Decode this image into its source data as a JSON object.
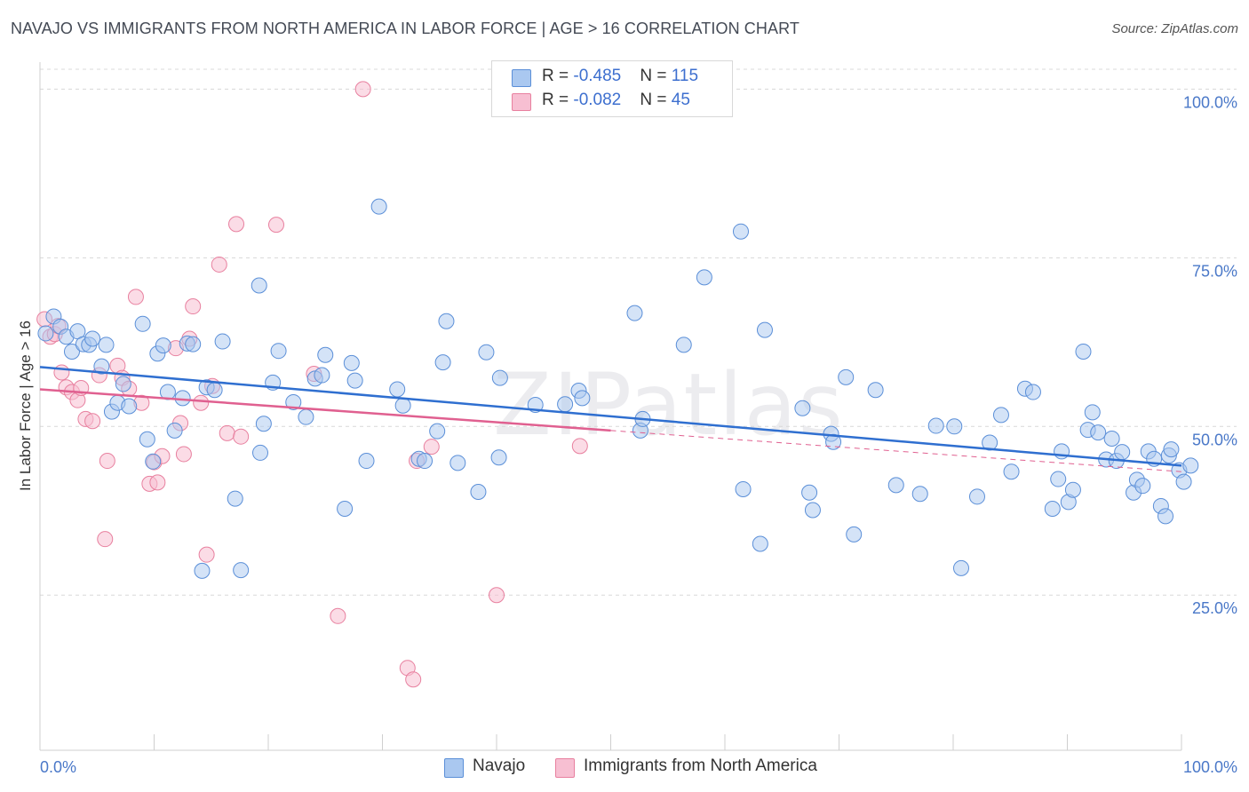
{
  "title": "NAVAJO VS IMMIGRANTS FROM NORTH AMERICA IN LABOR FORCE | AGE > 16 CORRELATION CHART",
  "source": "Source: ZipAtlas.com",
  "watermark": "ZIPatlas",
  "legend": {
    "navajo": {
      "r_label": "R = ",
      "r_value": "-0.485",
      "n_label": "N = ",
      "n_value": "115"
    },
    "immigrants": {
      "r_label": "R = ",
      "r_value": "-0.082",
      "n_label": "N = ",
      "n_value": "45"
    }
  },
  "colors": {
    "navajo_fill": "#aac8f0",
    "navajo_stroke": "#5b8fd8",
    "navajo_line": "#2f6fd0",
    "immigrants_fill": "#f7bfd2",
    "immigrants_stroke": "#e8809f",
    "immigrants_line": "#e06090",
    "grid": "#d8d8d8",
    "axis_text": "#4a78c8"
  },
  "chart_data": {
    "type": "scatter",
    "title": "NAVAJO VS IMMIGRANTS FROM NORTH AMERICA IN LABOR FORCE | AGE > 16 CORRELATION CHART",
    "xlabel": "",
    "ylabel": "In Labor Force | Age > 16",
    "xlim": [
      0,
      100
    ],
    "ylim": [
      2,
      104
    ],
    "x_tick_labels": [
      "0.0%",
      "100.0%"
    ],
    "y_ticks": [
      25,
      50,
      75,
      100
    ],
    "y_tick_labels": [
      "25.0%",
      "50.0%",
      "75.0%",
      "100.0%"
    ],
    "grid": "horizontal dashed",
    "legend_position": "top-center and bottom",
    "series": [
      {
        "name": "Navajo",
        "trend": {
          "x": [
            0,
            100
          ],
          "y": [
            58.8,
            44.2
          ]
        },
        "points": [
          [
            0.5,
            63.8
          ],
          [
            1.2,
            66.3
          ],
          [
            1.8,
            64.8
          ],
          [
            2.3,
            63.3
          ],
          [
            2.8,
            61.1
          ],
          [
            3.3,
            64.1
          ],
          [
            3.8,
            62.2
          ],
          [
            4.3,
            62.1
          ],
          [
            4.6,
            63.0
          ],
          [
            5.4,
            58.9
          ],
          [
            5.8,
            62.1
          ],
          [
            6.3,
            52.2
          ],
          [
            6.8,
            53.5
          ],
          [
            7.3,
            56.3
          ],
          [
            7.8,
            53.0
          ],
          [
            9.0,
            65.2
          ],
          [
            9.4,
            48.1
          ],
          [
            9.9,
            44.8
          ],
          [
            10.3,
            60.8
          ],
          [
            10.8,
            62.0
          ],
          [
            11.2,
            55.1
          ],
          [
            11.8,
            49.4
          ],
          [
            12.5,
            54.2
          ],
          [
            12.9,
            62.3
          ],
          [
            13.4,
            62.2
          ],
          [
            14.2,
            28.6
          ],
          [
            14.6,
            55.8
          ],
          [
            15.3,
            55.4
          ],
          [
            16.0,
            62.6
          ],
          [
            17.1,
            39.3
          ],
          [
            17.6,
            28.7
          ],
          [
            19.2,
            70.9
          ],
          [
            19.3,
            46.1
          ],
          [
            19.6,
            50.4
          ],
          [
            20.4,
            56.5
          ],
          [
            20.9,
            61.2
          ],
          [
            22.2,
            53.6
          ],
          [
            23.3,
            51.4
          ],
          [
            24.1,
            57.1
          ],
          [
            24.7,
            57.6
          ],
          [
            25.0,
            60.6
          ],
          [
            26.7,
            37.8
          ],
          [
            27.3,
            59.4
          ],
          [
            27.6,
            56.8
          ],
          [
            28.6,
            44.9
          ],
          [
            29.7,
            82.6
          ],
          [
            31.3,
            55.5
          ],
          [
            31.8,
            53.1
          ],
          [
            33.2,
            45.2
          ],
          [
            33.7,
            44.9
          ],
          [
            34.8,
            49.3
          ],
          [
            35.3,
            59.5
          ],
          [
            35.6,
            65.6
          ],
          [
            36.6,
            44.6
          ],
          [
            38.4,
            40.3
          ],
          [
            39.1,
            61.0
          ],
          [
            40.2,
            45.4
          ],
          [
            40.3,
            57.2
          ],
          [
            43.4,
            53.2
          ],
          [
            46.0,
            53.3
          ],
          [
            47.2,
            55.3
          ],
          [
            47.5,
            54.2
          ],
          [
            52.1,
            66.8
          ],
          [
            52.6,
            49.4
          ],
          [
            52.8,
            51.1
          ],
          [
            56.4,
            62.1
          ],
          [
            58.2,
            72.1
          ],
          [
            61.4,
            78.9
          ],
          [
            61.6,
            40.7
          ],
          [
            63.1,
            32.6
          ],
          [
            63.5,
            64.3
          ],
          [
            66.8,
            52.7
          ],
          [
            67.4,
            40.2
          ],
          [
            67.7,
            37.6
          ],
          [
            69.3,
            48.9
          ],
          [
            69.5,
            47.7
          ],
          [
            70.6,
            57.3
          ],
          [
            71.3,
            34.0
          ],
          [
            73.2,
            55.4
          ],
          [
            75.0,
            41.3
          ],
          [
            77.1,
            40.0
          ],
          [
            78.5,
            50.1
          ],
          [
            80.1,
            50.0
          ],
          [
            80.7,
            29.0
          ],
          [
            82.1,
            39.6
          ],
          [
            83.2,
            47.6
          ],
          [
            84.2,
            51.7
          ],
          [
            85.1,
            43.3
          ],
          [
            86.3,
            55.6
          ],
          [
            87.0,
            55.1
          ],
          [
            88.7,
            37.8
          ],
          [
            89.2,
            42.2
          ],
          [
            89.5,
            46.3
          ],
          [
            90.1,
            38.8
          ],
          [
            90.5,
            40.6
          ],
          [
            91.4,
            61.1
          ],
          [
            91.8,
            49.5
          ],
          [
            92.2,
            52.1
          ],
          [
            92.7,
            49.1
          ],
          [
            93.4,
            45.1
          ],
          [
            93.9,
            48.2
          ],
          [
            94.3,
            44.9
          ],
          [
            94.8,
            46.2
          ],
          [
            95.8,
            40.2
          ],
          [
            96.1,
            42.1
          ],
          [
            96.6,
            41.2
          ],
          [
            97.1,
            46.3
          ],
          [
            97.6,
            45.2
          ],
          [
            98.2,
            38.2
          ],
          [
            98.6,
            36.7
          ],
          [
            98.9,
            45.7
          ],
          [
            99.1,
            46.6
          ],
          [
            99.8,
            43.5
          ],
          [
            100.2,
            41.8
          ],
          [
            100.8,
            44.2
          ]
        ]
      },
      {
        "name": "Immigrants from North America",
        "trend": {
          "x": [
            0,
            50
          ],
          "y": [
            55.5,
            49.4
          ]
        },
        "trend_dashed": {
          "x": [
            50,
            100
          ],
          "y": [
            49.4,
            43.3
          ]
        },
        "points": [
          [
            0.4,
            65.9
          ],
          [
            0.9,
            63.3
          ],
          [
            1.3,
            63.7
          ],
          [
            1.6,
            64.9
          ],
          [
            1.9,
            58.0
          ],
          [
            2.3,
            55.8
          ],
          [
            2.8,
            55.1
          ],
          [
            3.3,
            53.9
          ],
          [
            3.6,
            55.7
          ],
          [
            4.0,
            51.1
          ],
          [
            4.6,
            50.8
          ],
          [
            5.2,
            57.6
          ],
          [
            5.7,
            33.3
          ],
          [
            5.9,
            44.9
          ],
          [
            6.8,
            59.0
          ],
          [
            7.2,
            57.2
          ],
          [
            7.8,
            55.6
          ],
          [
            8.4,
            69.2
          ],
          [
            8.9,
            53.5
          ],
          [
            9.6,
            41.5
          ],
          [
            10.0,
            44.7
          ],
          [
            10.3,
            41.7
          ],
          [
            10.7,
            45.6
          ],
          [
            11.9,
            61.6
          ],
          [
            12.3,
            50.5
          ],
          [
            12.6,
            45.9
          ],
          [
            13.1,
            63.0
          ],
          [
            13.4,
            67.8
          ],
          [
            14.1,
            53.5
          ],
          [
            14.6,
            31.0
          ],
          [
            15.1,
            56.0
          ],
          [
            15.7,
            74.0
          ],
          [
            16.4,
            49.0
          ],
          [
            17.2,
            80.0
          ],
          [
            17.6,
            48.5
          ],
          [
            20.7,
            79.9
          ],
          [
            24.0,
            57.8
          ],
          [
            26.1,
            21.9
          ],
          [
            28.3,
            100.0
          ],
          [
            32.2,
            14.2
          ],
          [
            32.7,
            12.5
          ],
          [
            33.0,
            44.9
          ],
          [
            34.3,
            47.0
          ],
          [
            40.0,
            25.0
          ],
          [
            47.3,
            47.1
          ]
        ]
      }
    ]
  },
  "bottom_legend": {
    "navajo": "Navajo",
    "immigrants": "Immigrants from North America"
  }
}
